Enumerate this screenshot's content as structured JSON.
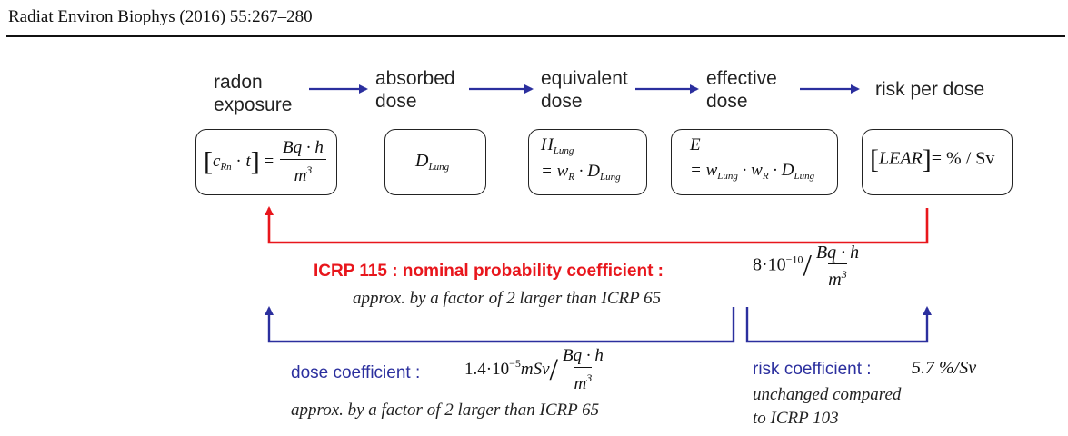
{
  "header": {
    "citation": "Radiat Environ Biophys (2016) 55:267–280"
  },
  "colors": {
    "red": "#e8161c",
    "blue": "#2b2f9e"
  },
  "stages": [
    {
      "line1": "radon",
      "line2": "exposure"
    },
    {
      "line1": "absorbed",
      "line2": "dose"
    },
    {
      "line1": "equivalent",
      "line2": "dose"
    },
    {
      "line1": "effective",
      "line2": "dose"
    },
    {
      "line1": "risk per dose",
      "line2": ""
    }
  ],
  "formulas": {
    "exposure": {
      "c": "c",
      "c_sub": "Rn",
      "t": "t",
      "num": "Bq · h",
      "den": "m",
      "den_sup": "3"
    },
    "absorbed": {
      "D": "D",
      "D_sub": "Lung"
    },
    "equivalent": {
      "H": "H",
      "H_sub": "Lung",
      "rhs": "= w",
      "w_sub": "R",
      "D": "· D",
      "D_sub": "Lung"
    },
    "effective": {
      "E": "E",
      "eq": "= w",
      "w1_sub": "Lung",
      "w2": "· w",
      "w2_sub": "R",
      "D": "· D",
      "D_sub": "Lung"
    },
    "risk": {
      "lhs": "LEAR",
      "rhs": "= % / Sv"
    }
  },
  "icrp115": {
    "label": "ICRP 115 : nominal probability coefficient :",
    "value_base": "8·10",
    "value_exp": "−10",
    "num": "Bq · h",
    "den": "m",
    "den_sup": "3",
    "note": "approx. by a factor of 2 larger than ICRP 65"
  },
  "dose_coefficient": {
    "label": "dose coefficient :",
    "value_base": "1.4·10",
    "value_exp": "−5",
    "unit": "mSv",
    "num": "Bq · h",
    "den": "m",
    "den_sup": "3",
    "note": "approx. by a factor of 2 larger than ICRP 65"
  },
  "risk_coefficient": {
    "label": "risk coefficient :",
    "value": "5.7 %/Sv",
    "note_line1": "unchanged compared",
    "note_line2": "to ICRP 103"
  }
}
